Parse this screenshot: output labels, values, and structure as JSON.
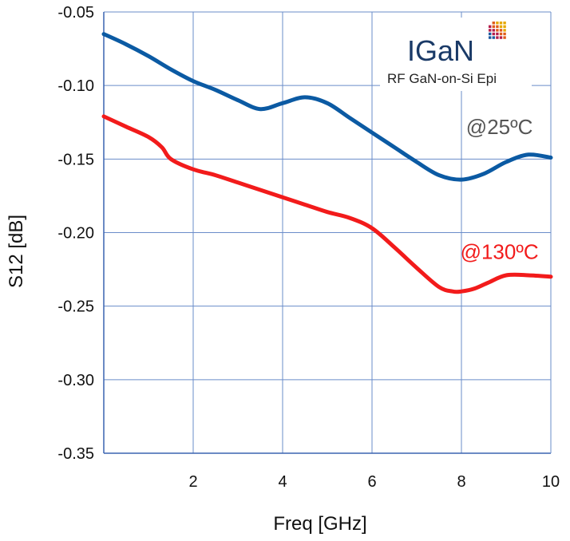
{
  "chart_data": {
    "type": "line",
    "xlabel": "Freq [GHz]",
    "ylabel": "S12 [dB]",
    "xlim": [
      0,
      10
    ],
    "ylim": [
      -0.35,
      -0.05
    ],
    "x_ticks": [
      "2",
      "4",
      "6",
      "8",
      "10"
    ],
    "y_ticks": [
      "-0.05",
      "-0.10",
      "-0.15",
      "-0.20",
      "-0.25",
      "-0.30",
      "-0.35"
    ],
    "grid": true,
    "series": [
      {
        "name": "@25ºC",
        "color": "#0b5aa3",
        "x": [
          0.0,
          0.5,
          1.0,
          1.5,
          2.0,
          2.5,
          3.0,
          3.5,
          4.0,
          4.5,
          5.0,
          5.5,
          6.0,
          6.5,
          7.0,
          7.5,
          8.0,
          8.5,
          9.0,
          9.5,
          10.0
        ],
        "y": [
          -0.065,
          -0.072,
          -0.08,
          -0.089,
          -0.097,
          -0.103,
          -0.11,
          -0.116,
          -0.112,
          -0.108,
          -0.112,
          -0.122,
          -0.132,
          -0.142,
          -0.152,
          -0.161,
          -0.164,
          -0.16,
          -0.152,
          -0.147,
          -0.149
        ]
      },
      {
        "name": "@130ºC",
        "color": "#f21b1b",
        "x": [
          0.0,
          0.5,
          1.0,
          1.3,
          1.5,
          2.0,
          2.5,
          3.0,
          3.5,
          4.0,
          4.5,
          5.0,
          5.5,
          6.0,
          6.5,
          7.0,
          7.5,
          7.8,
          8.0,
          8.3,
          8.6,
          9.0,
          9.5,
          10.0
        ],
        "y": [
          -0.121,
          -0.128,
          -0.135,
          -0.142,
          -0.15,
          -0.157,
          -0.161,
          -0.166,
          -0.171,
          -0.176,
          -0.181,
          -0.186,
          -0.19,
          -0.197,
          -0.21,
          -0.224,
          -0.237,
          -0.24,
          -0.24,
          -0.238,
          -0.234,
          -0.229,
          -0.229,
          -0.23
        ]
      }
    ],
    "annotations": [
      {
        "text": "@25ºC",
        "color": "#555555",
        "x": 8.85,
        "y": -0.133
      },
      {
        "text": "@130ºC",
        "color": "#f21b1b",
        "x": 8.85,
        "y": -0.218
      }
    ]
  },
  "logo": {
    "text": "IGaN",
    "subtitle": "RF GaN-on-Si Epi",
    "text_color": "#1a3a67",
    "dot_colors": [
      "#e6a800",
      "#e05b1a",
      "#b41e4b",
      "#1e5aa0"
    ]
  }
}
